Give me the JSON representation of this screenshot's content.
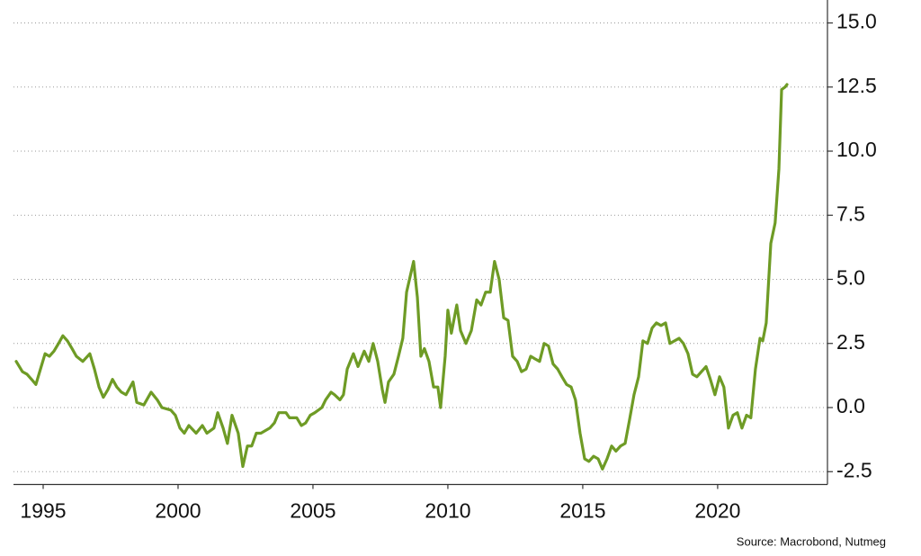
{
  "chart_data": {
    "type": "line",
    "source": "Source: Macrobond, Nutmeg",
    "color": "#6e9b25",
    "grid": true,
    "x": [
      1994.0,
      1994.23,
      1994.4,
      1994.57,
      1994.73,
      1994.9,
      1995.07,
      1995.23,
      1995.4,
      1995.57,
      1995.73,
      1995.9,
      1996.07,
      1996.23,
      1996.47,
      1996.73,
      1996.9,
      1997.07,
      1997.23,
      1997.4,
      1997.57,
      1997.73,
      1997.9,
      1998.07,
      1998.33,
      1998.47,
      1998.73,
      1999.0,
      1999.23,
      1999.4,
      1999.73,
      1999.9,
      2000.07,
      2000.23,
      2000.4,
      2000.67,
      2000.9,
      2001.07,
      2001.33,
      2001.47,
      2001.67,
      2001.83,
      2002.0,
      2002.23,
      2002.4,
      2002.57,
      2002.73,
      2002.9,
      2003.07,
      2003.4,
      2003.57,
      2003.73,
      2004.0,
      2004.13,
      2004.4,
      2004.57,
      2004.73,
      2004.9,
      2005.07,
      2005.33,
      2005.47,
      2005.67,
      2005.8,
      2006.0,
      2006.13,
      2006.27,
      2006.5,
      2006.67,
      2006.9,
      2007.07,
      2007.23,
      2007.4,
      2007.57,
      2007.67,
      2007.8,
      2008.0,
      2008.17,
      2008.33,
      2008.47,
      2008.6,
      2008.73,
      2008.87,
      2009.0,
      2009.13,
      2009.3,
      2009.47,
      2009.63,
      2009.73,
      2009.9,
      2010.0,
      2010.13,
      2010.33,
      2010.47,
      2010.67,
      2010.87,
      2011.07,
      2011.23,
      2011.4,
      2011.57,
      2011.73,
      2011.9,
      2012.07,
      2012.23,
      2012.4,
      2012.57,
      2012.73,
      2012.9,
      2013.07,
      2013.23,
      2013.4,
      2013.57,
      2013.73,
      2013.9,
      2014.07,
      2014.23,
      2014.4,
      2014.57,
      2014.73,
      2014.9,
      2015.07,
      2015.23,
      2015.4,
      2015.57,
      2015.73,
      2015.9,
      2016.07,
      2016.23,
      2016.4,
      2016.57,
      2016.73,
      2016.9,
      2017.07,
      2017.23,
      2017.4,
      2017.57,
      2017.73,
      2017.9,
      2018.07,
      2018.23,
      2018.4,
      2018.57,
      2018.73,
      2018.9,
      2019.07,
      2019.23,
      2019.4,
      2019.57,
      2019.73,
      2019.9,
      2020.07,
      2020.23,
      2020.4,
      2020.57,
      2020.73,
      2020.9,
      2021.07,
      2021.23,
      2021.4,
      2021.57,
      2021.67,
      2021.8,
      2021.97,
      2022.13,
      2022.27,
      2022.37,
      2022.5,
      2022.57
    ],
    "values": [
      1.8,
      1.4,
      1.3,
      1.1,
      0.9,
      1.5,
      2.1,
      2.0,
      2.2,
      2.5,
      2.8,
      2.6,
      2.3,
      2.0,
      1.8,
      2.1,
      1.5,
      0.8,
      0.4,
      0.7,
      1.1,
      0.8,
      0.6,
      0.5,
      1.0,
      0.2,
      0.1,
      0.6,
      0.3,
      0.0,
      -0.1,
      -0.3,
      -0.8,
      -1.0,
      -0.7,
      -1.0,
      -0.7,
      -1.0,
      -0.8,
      -0.2,
      -0.8,
      -1.4,
      -0.3,
      -1.0,
      -2.3,
      -1.5,
      -1.5,
      -1.0,
      -1.0,
      -0.8,
      -0.6,
      -0.2,
      -0.2,
      -0.4,
      -0.4,
      -0.7,
      -0.6,
      -0.3,
      -0.2,
      0.0,
      0.3,
      0.6,
      0.5,
      0.3,
      0.5,
      1.5,
      2.1,
      1.6,
      2.2,
      1.8,
      2.5,
      1.8,
      0.7,
      0.2,
      1.0,
      1.3,
      2.0,
      2.7,
      4.5,
      5.1,
      5.7,
      4.3,
      2.0,
      2.3,
      1.8,
      0.8,
      0.8,
      0.0,
      2.0,
      3.8,
      2.9,
      4.0,
      3.0,
      2.5,
      3.0,
      4.2,
      4.0,
      4.5,
      4.5,
      5.7,
      5.0,
      3.5,
      3.4,
      2.0,
      1.8,
      1.4,
      1.5,
      2.0,
      1.9,
      1.8,
      2.5,
      2.4,
      1.7,
      1.5,
      1.2,
      0.9,
      0.8,
      0.3,
      -1.0,
      -2.0,
      -2.1,
      -1.9,
      -2.0,
      -2.4,
      -2.0,
      -1.5,
      -1.7,
      -1.5,
      -1.4,
      -0.5,
      0.5,
      1.2,
      2.6,
      2.5,
      3.1,
      3.3,
      3.2,
      3.3,
      2.5,
      2.6,
      2.7,
      2.5,
      2.1,
      1.3,
      1.2,
      1.4,
      1.6,
      1.1,
      0.5,
      1.2,
      0.8,
      -0.8,
      -0.3,
      -0.2,
      -0.8,
      -0.3,
      -0.4,
      1.5,
      2.7,
      2.6,
      3.3,
      6.4,
      7.2,
      9.3,
      12.4,
      12.5,
      12.6
    ],
    "xlim": [
      1993.9,
      2024.07
    ],
    "xticks": [
      1995,
      2000,
      2005,
      2010,
      2015,
      2020
    ],
    "ylim": [
      -3,
      15.7
    ],
    "yticks": [
      {
        "value": 15,
        "label": "15.0"
      },
      12.5,
      {
        "value": 10,
        "label": "10.0"
      },
      7.5,
      {
        "value": 5,
        "label": "5.0"
      },
      2.5,
      {
        "value": 0,
        "label": "0.0"
      },
      -2.5
    ]
  }
}
